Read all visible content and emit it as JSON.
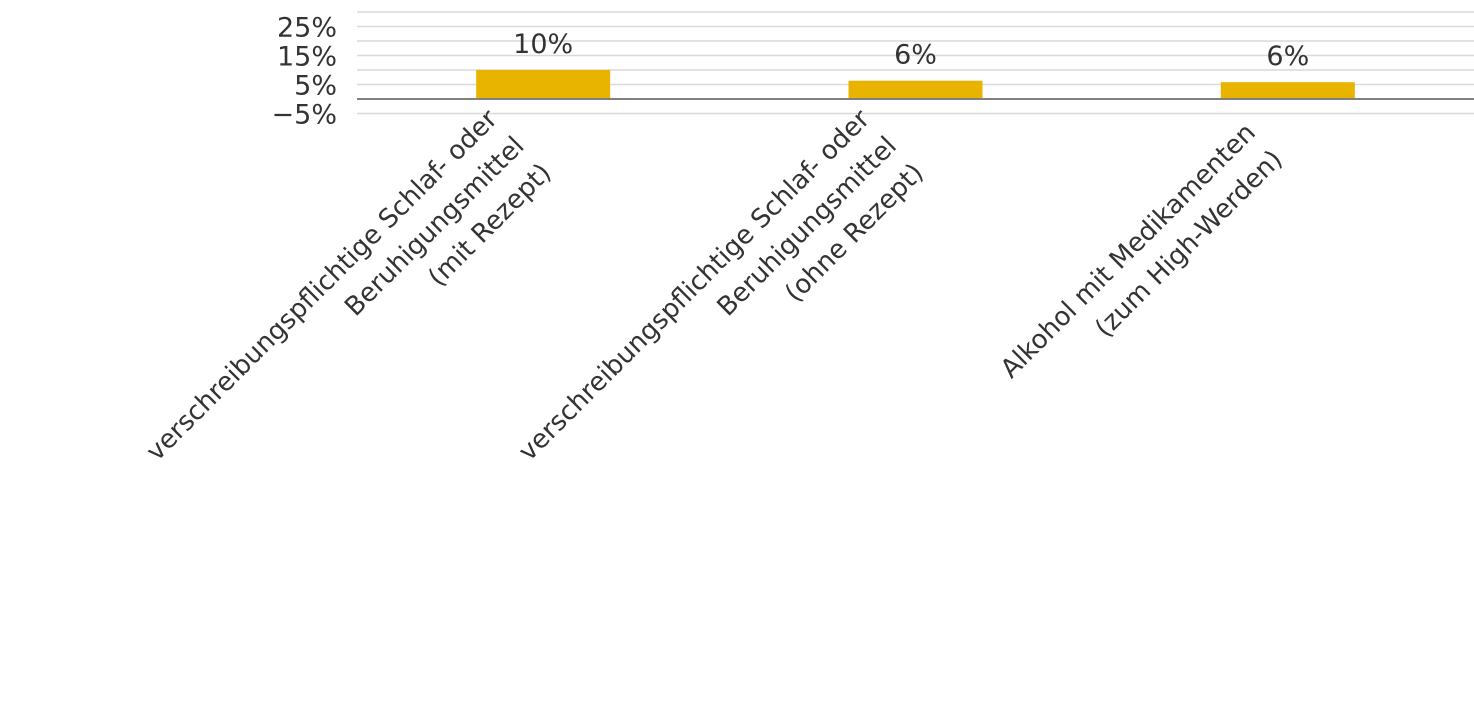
{
  "chart_data": {
    "type": "bar",
    "categories": [
      [
        "verschreibungspflichtige Schlaf- oder",
        "Beruhigungsmittel",
        "(mit Rezept)"
      ],
      [
        "verschreibungspflichtige Schlaf- oder",
        "Beruhigungsmittel",
        "(ohne Rezept)"
      ],
      [
        "Alkohol mit Medikamenten",
        "(zum High-Werden)"
      ]
    ],
    "values": [
      10,
      6.3,
      5.8
    ],
    "data_labels": [
      "10%",
      "6%",
      "6%"
    ],
    "y_ticks": [
      -5,
      5,
      15,
      25
    ],
    "y_tick_labels": [
      "−5%",
      "5%",
      "15%",
      "25%"
    ],
    "ylim": [
      -10,
      30
    ],
    "grid": true,
    "legend": "none",
    "colors": {
      "bar": "#E8B400",
      "grid": "#d9d9d9",
      "axis": "#808080",
      "text": "#333333"
    }
  }
}
